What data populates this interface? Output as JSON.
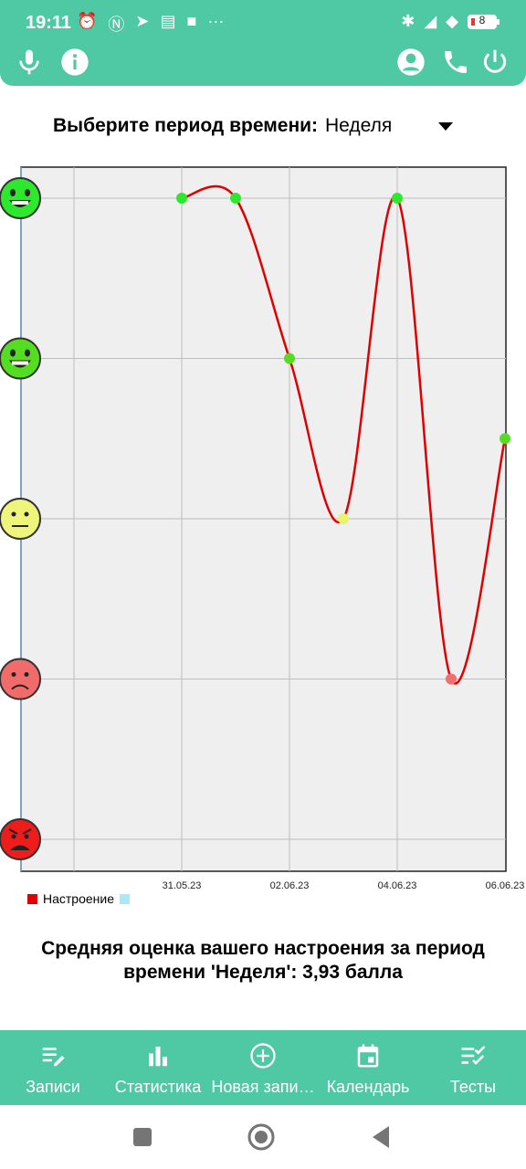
{
  "status_bar": {
    "time": "19:11",
    "battery": "8",
    "left_icons": [
      "alarm-icon",
      "nfc-icon",
      "telegram-icon",
      "message-icon",
      "square-icon",
      "more-icon"
    ],
    "right_icons": [
      "bluetooth-icon",
      "signal-icon",
      "wifi-icon",
      "battery-icon"
    ]
  },
  "app_bar": {
    "left_buttons": [
      "microphone-icon",
      "info-icon"
    ],
    "right_buttons": [
      "account-icon",
      "phone-icon",
      "power-icon"
    ]
  },
  "period": {
    "label": "Выберите период времени:",
    "value": "Неделя"
  },
  "chart_data": {
    "type": "line",
    "x": [
      "31.05.23",
      "01.06.23",
      "02.06.23",
      "03.06.23",
      "04.06.23",
      "05.06.23",
      "06.06.23"
    ],
    "x_tick_labels": [
      "31.05.23",
      "02.06.23",
      "04.06.23",
      "06.06.23"
    ],
    "series": [
      {
        "name": "Настроение",
        "values": [
          5,
          5,
          4,
          3,
          5,
          2,
          3.5
        ],
        "color": "#e00000"
      }
    ],
    "ylim": [
      1,
      5
    ],
    "y_labels_as_icons": [
      "very-happy-face-icon",
      "happy-face-icon",
      "neutral-face-icon",
      "sad-face-icon",
      "angry-face-icon"
    ],
    "point_colors": {
      "5": "#2ee82e",
      "4": "#55dd22",
      "3": "#e8f56a",
      "2": "#f07070"
    },
    "legend": [
      "Настроение",
      ""
    ],
    "legend_colors": [
      "#e00000",
      "#a8e8f8"
    ],
    "grid": true,
    "legend_position": "bottom-left"
  },
  "summary": {
    "text": "Средняя оценка вашего настроения за период времени 'Неделя': 3,93 балла"
  },
  "bottom_nav": {
    "items": [
      {
        "label": "Записи",
        "icon": "notes-edit-icon"
      },
      {
        "label": "Статистика",
        "icon": "bar-chart-icon"
      },
      {
        "label": "Новая запи…",
        "icon": "add-circle-icon"
      },
      {
        "label": "Календарь",
        "icon": "calendar-icon"
      },
      {
        "label": "Тесты",
        "icon": "checklist-icon"
      }
    ]
  },
  "system_nav": {
    "buttons": [
      "recents-button",
      "home-button",
      "back-button"
    ]
  }
}
